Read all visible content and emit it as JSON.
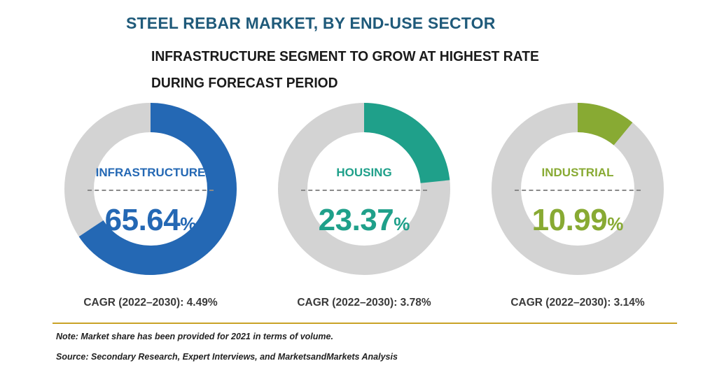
{
  "header": {
    "title": "STEEL REBAR MARKET, BY END-USE SECTOR",
    "subtitle": "INFRASTRUCTURE SEGMENT TO GROW AT HIGHEST RATE DURING FORECAST PERIOD"
  },
  "chart_data": {
    "type": "pie",
    "categories": [
      "INFRASTRUCTURE",
      "HOUSING",
      "INDUSTRIAL"
    ],
    "values": [
      65.64,
      23.37,
      10.99
    ],
    "value_labels": [
      "65.64",
      "23.37",
      "10.99"
    ],
    "unit": "%",
    "cagr_labels": [
      "CAGR (2022–2030): 4.49%",
      "CAGR (2022–2030): 3.78%",
      "CAGR (2022–2030): 3.14%"
    ],
    "colors": [
      "#2468b4",
      "#1fa08a",
      "#88aa33"
    ],
    "track_color": "#d3d3d3"
  },
  "footer": {
    "note": "Note: Market share has been provided for 2021 in terms of volume.",
    "source": "Source: Secondary Research, Expert Interviews, and MarketsandMarkets Analysis"
  }
}
